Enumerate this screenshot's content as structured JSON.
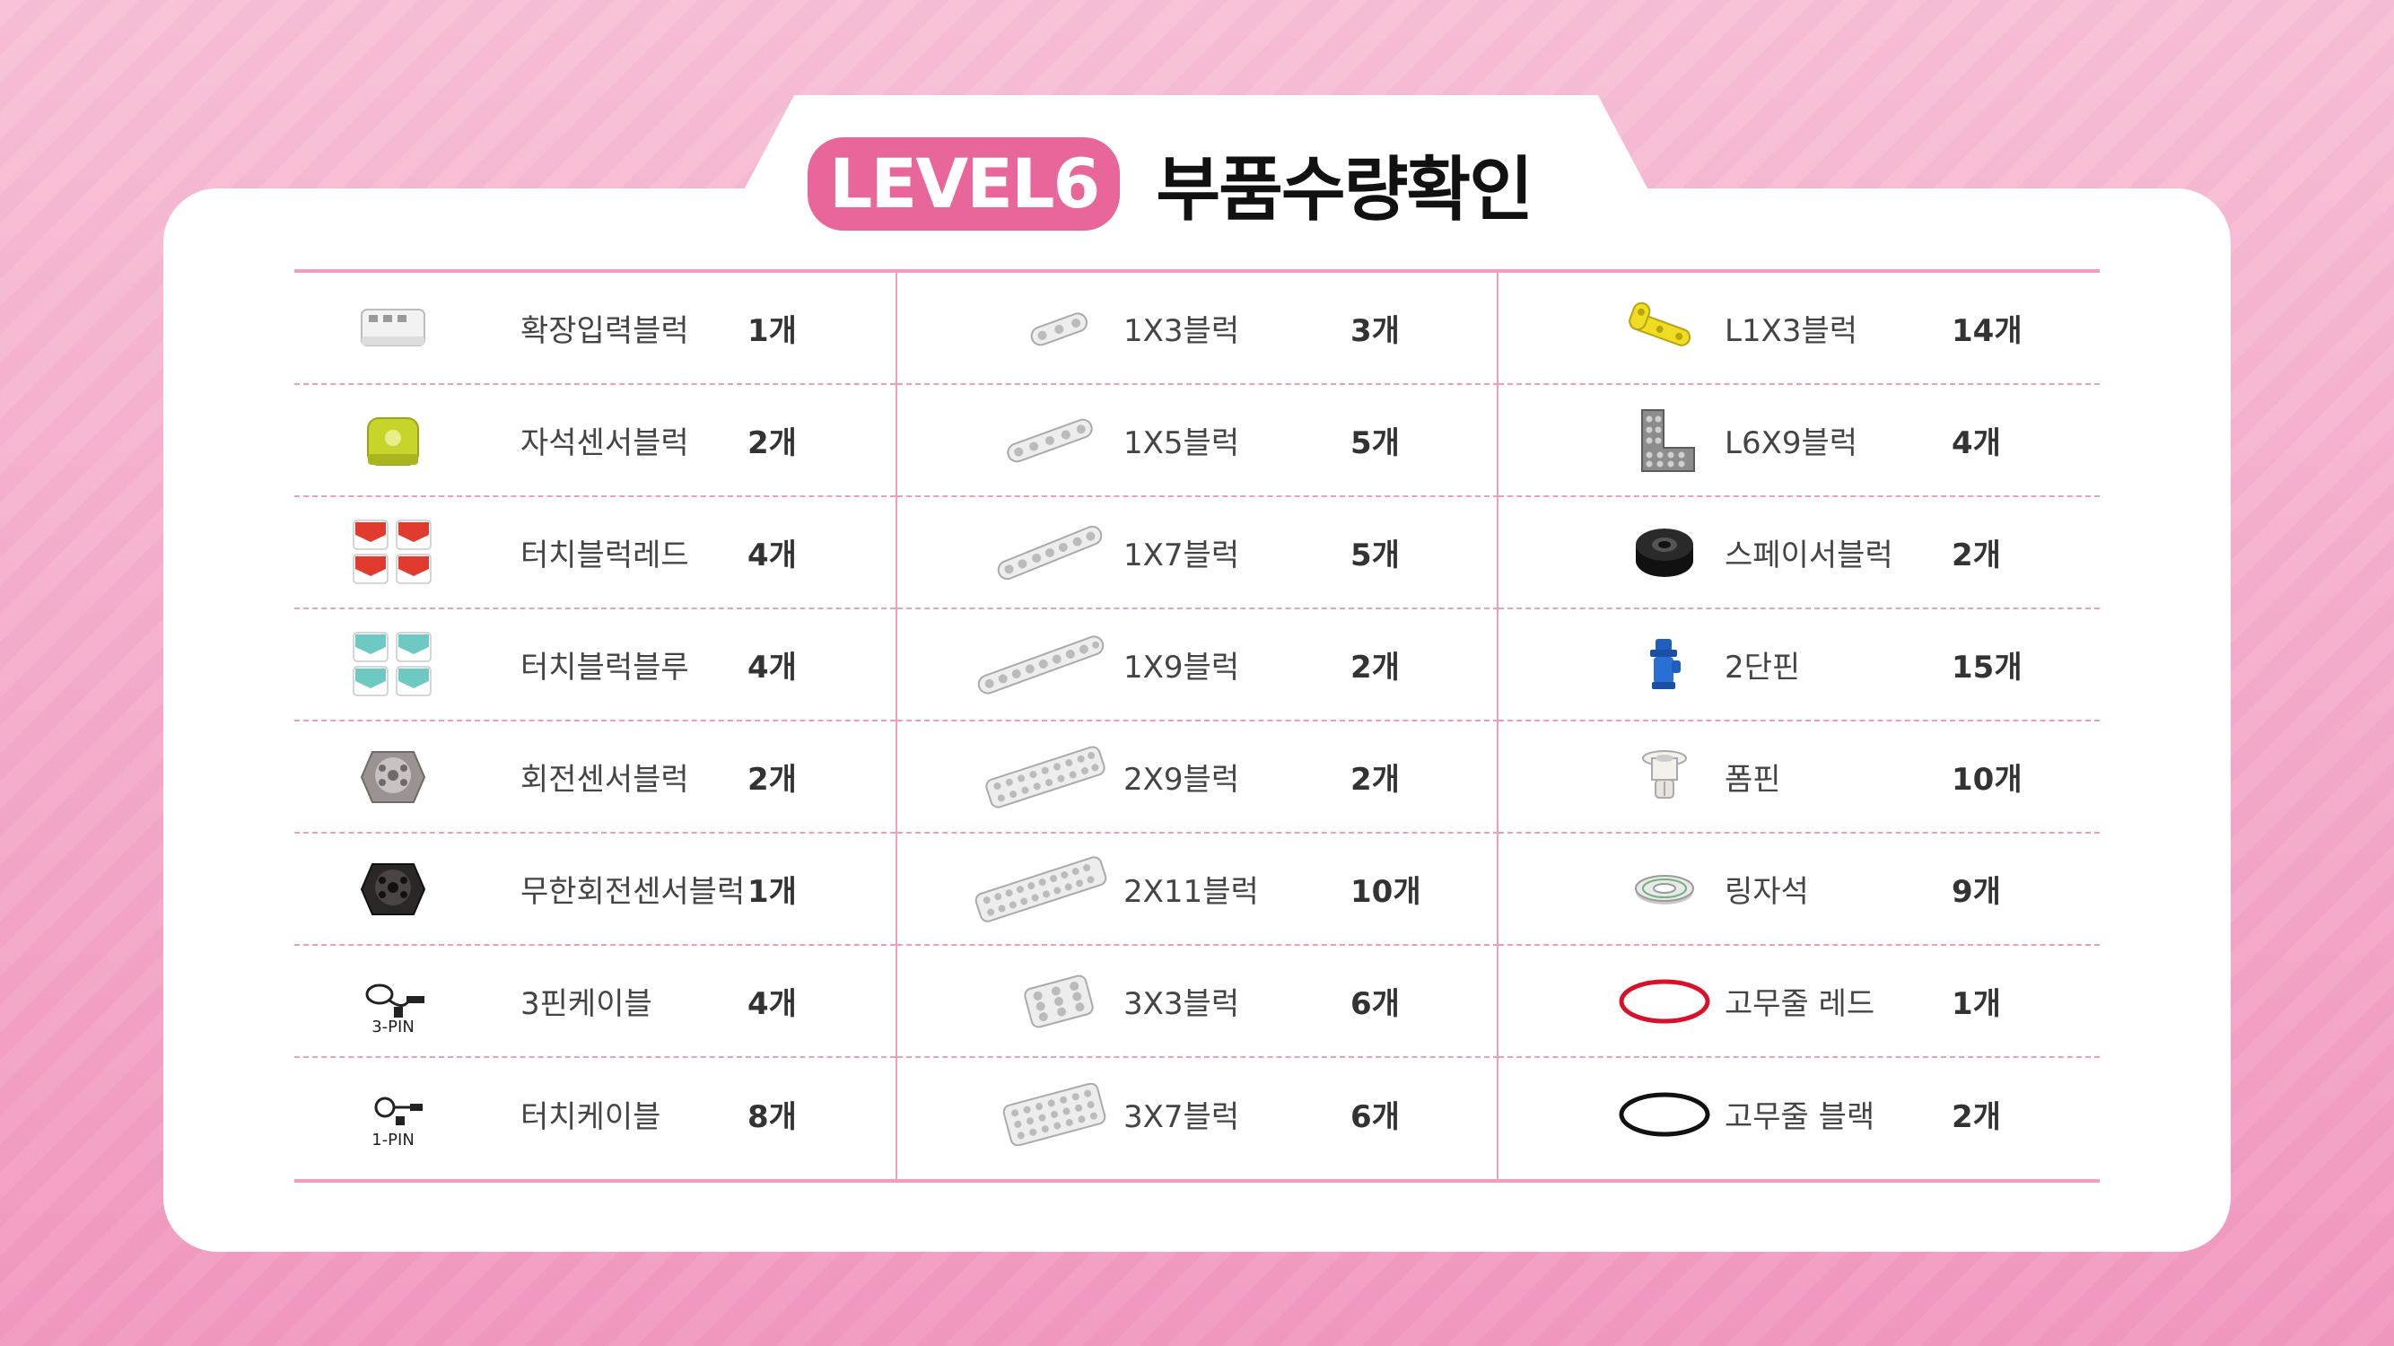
{
  "title": {
    "badge": "LEVEL6",
    "text": "부품수량확인"
  },
  "columns": [
    [
      {
        "name": "확장입력블럭",
        "qty": "1개",
        "icon": "expansion-input-block-icon"
      },
      {
        "name": "자석센서블럭",
        "qty": "2개",
        "icon": "magnet-sensor-block-icon"
      },
      {
        "name": "터치블럭레드",
        "qty": "4개",
        "icon": "touch-block-red-icon"
      },
      {
        "name": "터치블럭블루",
        "qty": "4개",
        "icon": "touch-block-blue-icon"
      },
      {
        "name": "회전센서블럭",
        "qty": "2개",
        "icon": "rotation-sensor-block-icon"
      },
      {
        "name": "무한회전센서블럭",
        "qty": "1개",
        "icon": "infinite-rotation-sensor-block-icon"
      },
      {
        "name": "3핀케이블",
        "qty": "4개",
        "icon": "3pin-cable-icon",
        "label": "3-PIN"
      },
      {
        "name": "터치케이블",
        "qty": "8개",
        "icon": "touch-cable-icon",
        "label": "1-PIN"
      }
    ],
    [
      {
        "name": "1X3블럭",
        "qty": "3개",
        "icon": "beam-1x3-icon"
      },
      {
        "name": "1X5블럭",
        "qty": "5개",
        "icon": "beam-1x5-icon"
      },
      {
        "name": "1X7블럭",
        "qty": "5개",
        "icon": "beam-1x7-icon"
      },
      {
        "name": "1X9블럭",
        "qty": "2개",
        "icon": "beam-1x9-icon"
      },
      {
        "name": "2X9블럭",
        "qty": "2개",
        "icon": "plate-2x9-icon"
      },
      {
        "name": "2X11블럭",
        "qty": "10개",
        "icon": "plate-2x11-icon"
      },
      {
        "name": "3X3블럭",
        "qty": "6개",
        "icon": "plate-3x3-icon"
      },
      {
        "name": "3X7블럭",
        "qty": "6개",
        "icon": "plate-3x7-icon"
      }
    ],
    [
      {
        "name": "L1X3블럭",
        "qty": "14개",
        "icon": "l-beam-1x3-icon"
      },
      {
        "name": "L6X9블럭",
        "qty": "4개",
        "icon": "l-bracket-6x9-icon"
      },
      {
        "name": "스페이서블럭",
        "qty": "2개",
        "icon": "spacer-block-icon"
      },
      {
        "name": "2단핀",
        "qty": "15개",
        "icon": "two-stage-pin-icon"
      },
      {
        "name": "폼핀",
        "qty": "10개",
        "icon": "foam-pin-icon"
      },
      {
        "name": "링자석",
        "qty": "9개",
        "icon": "ring-magnet-icon"
      },
      {
        "name": "고무줄 레드",
        "qty": "1개",
        "icon": "rubber-band-red-icon"
      },
      {
        "name": "고무줄 블랙",
        "qty": "2개",
        "icon": "rubber-band-black-icon"
      }
    ]
  ],
  "colors": {
    "accent": "#e8669a",
    "line": "#ef9ec0",
    "background": "#f5b8d2"
  }
}
